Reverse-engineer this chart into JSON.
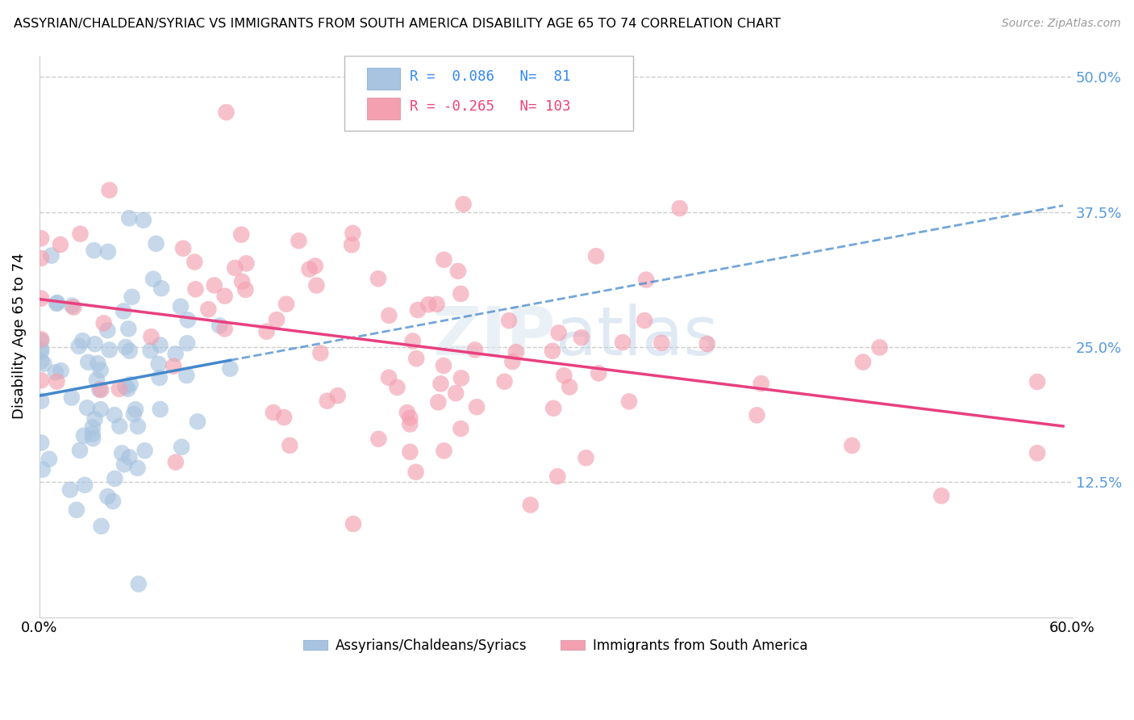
{
  "title": "ASSYRIAN/CHALDEAN/SYRIAC VS IMMIGRANTS FROM SOUTH AMERICA DISABILITY AGE 65 TO 74 CORRELATION CHART",
  "source": "Source: ZipAtlas.com",
  "ylabel": "Disability Age 65 to 74",
  "xlim": [
    0.0,
    0.6
  ],
  "ylim": [
    0.0,
    0.52
  ],
  "blue_R": 0.086,
  "blue_N": 81,
  "pink_R": -0.265,
  "pink_N": 103,
  "blue_color": "#a8c4e0",
  "pink_color": "#f4a0b0",
  "blue_line_color": "#4488cc",
  "pink_line_color": "#e84080",
  "legend_label_blue": "Assyrians/Chaldeans/Syriacs",
  "legend_label_pink": "Immigrants from South America",
  "watermark_zip": "ZIP",
  "watermark_atlas": "atlas",
  "blue_seed": 42,
  "pink_seed": 99,
  "ytick_vals": [
    0.125,
    0.25,
    0.375,
    0.5
  ],
  "ytick_labels": [
    "12.5%",
    "25.0%",
    "37.5%",
    "50.0%"
  ]
}
